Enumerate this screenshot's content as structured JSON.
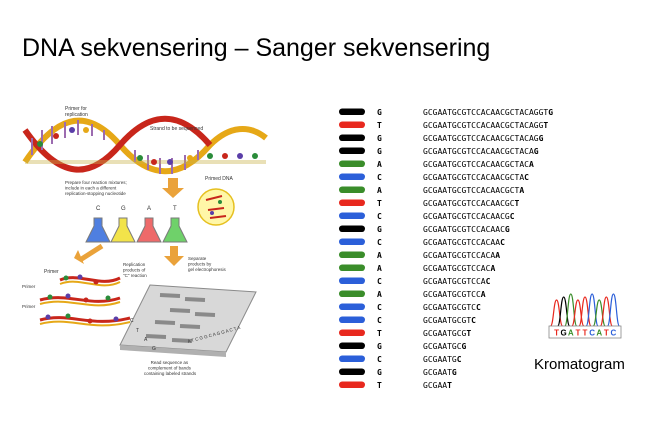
{
  "title": "DNA sekvensering – Sanger sekvensering",
  "figure": {
    "primer_for_replication": [
      "Primer for",
      "replication"
    ],
    "strand_to_be_sequenced": "Strand to be sequenced",
    "prepare_mixtures": [
      "Prepare four reaction mixtures;",
      "include in each a different",
      "replication-stopping nucleotide"
    ],
    "primed_dna": "Primed DNA",
    "tube_labels": [
      "C",
      "G",
      "A",
      "T"
    ],
    "primer": "Primer",
    "replication_products": [
      "Replication",
      "products of",
      "\"C\" reaction"
    ],
    "separate_products": [
      "Separate",
      "products by",
      "gel electrophoresis"
    ],
    "gel_lane_labels": [
      "C",
      "T",
      "A",
      "G"
    ],
    "gel_read": "A T C G G C A G G A C T A",
    "read_sequence": [
      "Read sequence as",
      "complement of bands",
      "containing labeled strands"
    ]
  },
  "ladder": {
    "colors": {
      "G": "#000000",
      "T": "#e8281e",
      "C": "#2b5fd9",
      "A": "#3a8d2a"
    },
    "rows": [
      {
        "base": "G",
        "prefix": "GCGAATGCGTCCACAACGCTACAGGT",
        "last": "G"
      },
      {
        "base": "T",
        "prefix": "GCGAATGCGTCCACAACGCTACAGG",
        "last": "T"
      },
      {
        "base": "G",
        "prefix": "GCGAATGCGTCCACAACGCTACAG",
        "last": "G"
      },
      {
        "base": "G",
        "prefix": "GCGAATGCGTCCACAACGCTACA",
        "last": "G"
      },
      {
        "base": "A",
        "prefix": "GCGAATGCGTCCACAACGCTAC",
        "last": "A"
      },
      {
        "base": "C",
        "prefix": "GCGAATGCGTCCACAACGCTA",
        "last": "C"
      },
      {
        "base": "A",
        "prefix": "GCGAATGCGTCCACAACGCT",
        "last": "A"
      },
      {
        "base": "T",
        "prefix": "GCGAATGCGTCCACAACGC",
        "last": "T"
      },
      {
        "base": "C",
        "prefix": "GCGAATGCGTCCACAACG",
        "last": "C"
      },
      {
        "base": "G",
        "prefix": "GCGAATGCGTCCACAAC",
        "last": "G"
      },
      {
        "base": "C",
        "prefix": "GCGAATGCGTCCACAA",
        "last": "C"
      },
      {
        "base": "A",
        "prefix": "GCGAATGCGTCCACA",
        "last": "A"
      },
      {
        "base": "A",
        "prefix": "GCGAATGCGTCCAC",
        "last": "A"
      },
      {
        "base": "C",
        "prefix": "GCGAATGCGTCCA",
        "last": "C"
      },
      {
        "base": "A",
        "prefix": "GCGAATGCGTCC",
        "last": "A"
      },
      {
        "base": "C",
        "prefix": "GCGAATGCGTC",
        "last": "C"
      },
      {
        "base": "C",
        "prefix": "GCGAATGCGT",
        "last": "C"
      },
      {
        "base": "T",
        "prefix": "GCGAATGCG",
        "last": "T"
      },
      {
        "base": "G",
        "prefix": "GCGAATGC",
        "last": "G"
      },
      {
        "base": "C",
        "prefix": "GCGAATG",
        "last": "C"
      },
      {
        "base": "G",
        "prefix": "GCGAAT",
        "last": "G"
      },
      {
        "base": "T",
        "prefix": "GCGAA",
        "last": "T"
      }
    ]
  },
  "chromatogram": {
    "sequence": "TGATTCATC",
    "caption": "Kromatogram"
  }
}
